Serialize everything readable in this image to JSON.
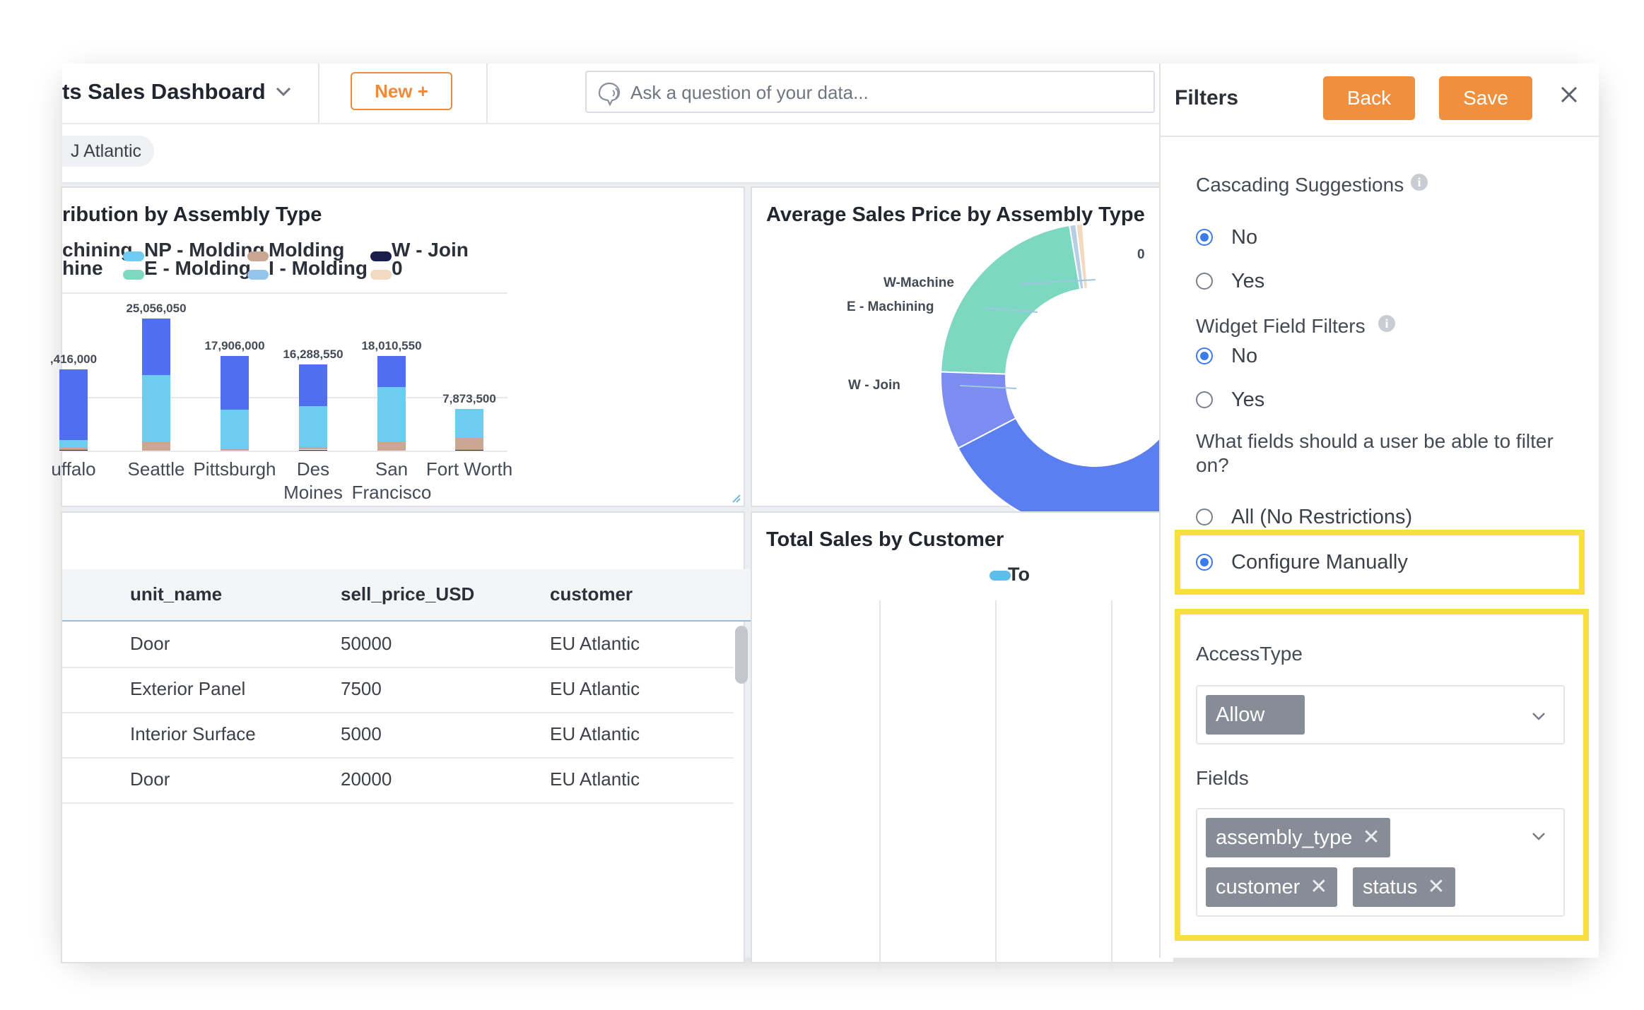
{
  "header": {
    "dashboard_title": "ts Sales Dashboard",
    "new_button": "New +",
    "ask_placeholder": "Ask a question of your data..."
  },
  "filter_chip": "J Atlantic",
  "bar_panel": {
    "title": "ribution by Assembly Type",
    "legend": [
      {
        "name": "chining",
        "color": "#4f6ff0"
      },
      {
        "name": "hine",
        "color": "#7c8cf0"
      },
      {
        "name": "NP - Molding",
        "color": "#6ccdf0"
      },
      {
        "name": "E - Molding",
        "color": "#7dd8c2"
      },
      {
        "name": "Molding",
        "color": "#c9a792"
      },
      {
        "name": "I - Molding",
        "color": "#93c4ec"
      },
      {
        "name": "W - Join",
        "color": "#1a1d4a"
      },
      {
        "name": "0",
        "color": "#f2d9bf"
      }
    ]
  },
  "chart_data": [
    {
      "type": "bar",
      "title": "ribution by Assembly Type",
      "categories": [
        "uffalo",
        "Seattle",
        "Pittsburgh",
        "Des Moines",
        "San Francisco",
        "Fort Worth"
      ],
      "totals": [
        15416000,
        25056050,
        17906000,
        16288550,
        18010550,
        7873500
      ],
      "total_labels": [
        ",416,000",
        "25,056,050",
        "17,906,000",
        "16,288,550",
        "18,010,550",
        "7,873,500"
      ],
      "series": [
        {
          "name": "W - Join",
          "color": "#1a1d4a",
          "values": [
            200000,
            0,
            0,
            200000,
            0,
            200000
          ]
        },
        {
          "name": "Molding",
          "color": "#c9a792",
          "values": [
            300000,
            1800000,
            300000,
            500000,
            1800000,
            2200000
          ]
        },
        {
          "name": "NP - Molding",
          "color": "#6ccdf0",
          "values": [
            1500000,
            12500000,
            7500000,
            7800000,
            10300000,
            5473500
          ]
        },
        {
          "name": "chining",
          "color": "#4f6ff0",
          "values": [
            13416000,
            10756050,
            10106000,
            7788550,
            5910550,
            0
          ]
        }
      ],
      "ylim": [
        0,
        30000000
      ]
    },
    {
      "type": "pie",
      "title": "Average Sales Price by Assembly Type",
      "labels": [
        "0",
        "W-Machine",
        "E - Machining",
        "W - Join"
      ],
      "slices": [
        {
          "label": "0",
          "value": 0.5,
          "color": "#f2d9bf"
        },
        {
          "label": "W-Machine",
          "value": 0.5,
          "color": "#b7cfe3"
        },
        {
          "label": "E - Machining",
          "value": 16,
          "color": "#7dd8c2"
        },
        {
          "label": "W - Join",
          "value": 6,
          "color": "#7c8cf0"
        },
        {
          "label": "",
          "value": 32,
          "color": "#5b7ff0"
        }
      ]
    },
    {
      "type": "bar",
      "title": "Total Sales by Customer",
      "legend": [
        "To"
      ],
      "legend_color": "#5fbde9"
    }
  ],
  "table": {
    "columns": [
      "unit_name",
      "sell_price_USD",
      "customer"
    ],
    "rows": [
      [
        "Door",
        "50000",
        "EU Atlantic"
      ],
      [
        "Exterior Panel",
        "7500",
        "EU Atlantic"
      ],
      [
        "Interior Surface",
        "5000",
        "EU Atlantic"
      ],
      [
        "Door",
        "20000",
        "EU Atlantic"
      ]
    ]
  },
  "filters": {
    "title": "Filters",
    "back": "Back",
    "save": "Save",
    "cascading_label": "Cascading Suggestions",
    "cascading_options": [
      "No",
      "Yes"
    ],
    "cascading_selected": "No",
    "widget_label": "Widget Field Filters",
    "widget_options": [
      "No",
      "Yes"
    ],
    "widget_selected": "No",
    "fields_question": "What fields should a user be able to filter on?",
    "restriction_options": [
      "All (No Restrictions)",
      "Configure Manually"
    ],
    "restriction_selected": "Configure Manually",
    "access_type_label": "AccessType",
    "access_type_value": "Allow",
    "fields_label": "Fields",
    "fields": [
      "assembly_type",
      "customer",
      "status"
    ],
    "highlight_color": "#f8df3f",
    "accent": "#f0903f",
    "radio_color": "#3b7bec"
  }
}
